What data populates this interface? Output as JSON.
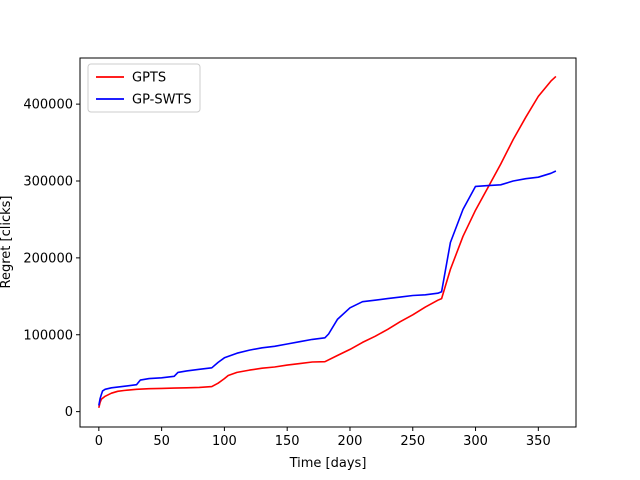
{
  "chart_data": {
    "type": "line",
    "xlabel": "Time [days]",
    "ylabel": "Regret [clicks]",
    "xlim": [
      -15,
      380
    ],
    "ylim": [
      -20000,
      460000
    ],
    "xticks": [
      0,
      50,
      100,
      150,
      200,
      250,
      300,
      350
    ],
    "yticks": [
      0,
      100000,
      200000,
      300000,
      400000
    ],
    "grid": false,
    "legend_position": "upper-left",
    "series": [
      {
        "name": "GPTS",
        "color": "#ff0000",
        "x": [
          0,
          1,
          2,
          5,
          10,
          15,
          20,
          30,
          40,
          50,
          60,
          70,
          80,
          90,
          95,
          100,
          103,
          110,
          120,
          130,
          140,
          150,
          160,
          170,
          180,
          190,
          200,
          210,
          220,
          230,
          240,
          250,
          260,
          270,
          273,
          280,
          290,
          300,
          310,
          320,
          330,
          340,
          350,
          360,
          364
        ],
        "y": [
          5000,
          12000,
          16000,
          20000,
          24000,
          26500,
          27500,
          29000,
          29800,
          30200,
          30600,
          31000,
          31500,
          32500,
          37000,
          43000,
          47000,
          51000,
          54000,
          56500,
          58000,
          60500,
          62500,
          64500,
          65000,
          73000,
          81000,
          90000,
          98000,
          107000,
          117000,
          126000,
          136000,
          145000,
          147000,
          185000,
          228000,
          262000,
          292000,
          322000,
          354000,
          383000,
          410000,
          430000,
          436000
        ]
      },
      {
        "name": "GP-SWTS",
        "color": "#0000ff",
        "x": [
          0,
          1,
          2,
          3,
          5,
          10,
          20,
          30,
          33,
          40,
          50,
          60,
          63,
          70,
          80,
          90,
          95,
          100,
          110,
          120,
          130,
          140,
          150,
          160,
          170,
          180,
          183,
          190,
          200,
          210,
          220,
          230,
          240,
          250,
          260,
          270,
          273,
          280,
          290,
          300,
          310,
          320,
          330,
          340,
          350,
          360,
          364
        ],
        "y": [
          8000,
          17000,
          22000,
          27000,
          29000,
          31000,
          33000,
          35000,
          41000,
          43000,
          44000,
          46000,
          51000,
          53000,
          55000,
          57000,
          64000,
          70000,
          76000,
          80000,
          83000,
          85000,
          88000,
          91000,
          94000,
          96000,
          101000,
          120000,
          135000,
          143000,
          145000,
          147000,
          149000,
          151000,
          152000,
          154000,
          156000,
          220000,
          263000,
          293000,
          294000,
          295000,
          300000,
          303000,
          305000,
          310000,
          313000
        ]
      }
    ]
  }
}
